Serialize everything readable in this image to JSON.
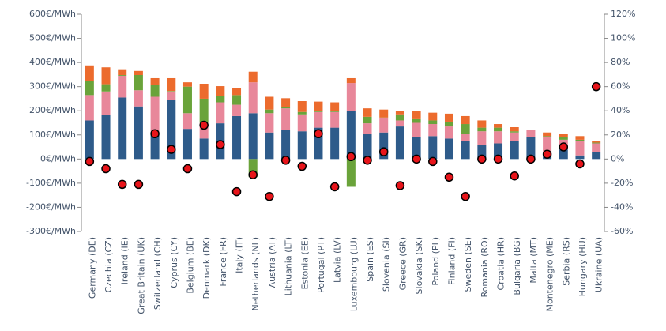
{
  "chart_data": {
    "type": "bar",
    "categories": [
      "Germany (DE)",
      "Czechia (CZ)",
      "Ireland (IE)",
      "Great Britain (UK)",
      "Switzerland (CH)",
      "Cyprus (CY)",
      "Belgium (BE)",
      "Denmark (DK)",
      "France (FR)",
      "Italy (IT)",
      "Netherlands (NL)",
      "Austria (AT)",
      "Lithuania (LT)",
      "Estonia (EE)",
      "Portugal (PT)",
      "Latvia (LV)",
      "Luxembourg (LU)",
      "Spain (ES)",
      "Slovenia (SI)",
      "Greece (GR)",
      "Slovakia (SK)",
      "Poland (PL)",
      "Finland (FI)",
      "Sweden (SE)",
      "Romania (RO)",
      "Croatia (HR)",
      "Bulgaria (BG)",
      "Malta (MT)",
      "Montenegro (ME)",
      "Serbia (RS)",
      "Hungary (HU)",
      "Ukraine (UA)"
    ],
    "series": [
      {
        "color": "#2e5b8a",
        "values": [
          160,
          182,
          255,
          218,
          100,
          245,
          125,
          85,
          148,
          178,
          190,
          110,
          122,
          115,
          130,
          130,
          198,
          105,
          110,
          135,
          90,
          95,
          85,
          75,
          60,
          65,
          75,
          90,
          25,
          40,
          15,
          30
        ]
      },
      {
        "color": "#e8879a",
        "values": [
          105,
          98,
          90,
          67,
          158,
          35,
          65,
          65,
          87,
          47,
          128,
          80,
          88,
          70,
          65,
          65,
          117,
          43,
          60,
          25,
          60,
          50,
          50,
          30,
          55,
          50,
          35,
          30,
          65,
          40,
          60,
          35
        ]
      },
      {
        "color": "#6aa33a",
        "values": [
          60,
          30,
          3,
          63,
          50,
          2,
          110,
          100,
          27,
          40,
          -75,
          15,
          5,
          10,
          5,
          3,
          -115,
          27,
          2,
          25,
          15,
          15,
          20,
          40,
          15,
          15,
          5,
          0,
          5,
          10,
          5,
          3
        ]
      },
      {
        "color": "#ec6b2d",
        "values": [
          63,
          70,
          24,
          17,
          27,
          53,
          18,
          62,
          40,
          30,
          44,
          53,
          37,
          45,
          38,
          37,
          20,
          35,
          33,
          15,
          33,
          32,
          33,
          33,
          30,
          15,
          17,
          2,
          15,
          15,
          15,
          7
        ]
      },
      {
        "type": "scatter",
        "axis": "y2",
        "color": "#e8141a",
        "values": [
          -2,
          -8,
          -21,
          -21,
          21,
          8,
          -8,
          28,
          12,
          -27,
          -13,
          -31,
          -1,
          -6,
          21,
          -23,
          2,
          -1,
          6,
          -22,
          0,
          -2,
          -15,
          -31,
          0,
          0,
          -14,
          0,
          4,
          10,
          -4,
          60
        ]
      }
    ],
    "ylim": [
      -300,
      600
    ],
    "yticks": [
      {
        "value": -300,
        "label": "-300€/MWh"
      },
      {
        "value": -200,
        "label": "-200€/MWh"
      },
      {
        "value": -100,
        "label": "-100€/MWh"
      },
      {
        "value": 0,
        "label": "0€/MWh"
      },
      {
        "value": 100,
        "label": "100€/MWh"
      },
      {
        "value": 200,
        "label": "200€/MWh"
      },
      {
        "value": 300,
        "label": "300€/MWh"
      },
      {
        "value": 400,
        "label": "400€/MWh"
      },
      {
        "value": 500,
        "label": "500€/MWh"
      },
      {
        "value": 600,
        "label": "600€/MWh"
      }
    ],
    "y2lim": [
      -60,
      120
    ],
    "y2ticks": [
      {
        "value": -60,
        "label": "-60%"
      },
      {
        "value": -40,
        "label": "-40%"
      },
      {
        "value": -20,
        "label": "-20%"
      },
      {
        "value": 0,
        "label": "0%"
      },
      {
        "value": 20,
        "label": "20%"
      },
      {
        "value": 40,
        "label": "40%"
      },
      {
        "value": 60,
        "label": "60%"
      },
      {
        "value": 80,
        "label": "80%"
      },
      {
        "value": 100,
        "label": "100%"
      },
      {
        "value": 120,
        "label": "120%"
      }
    ]
  }
}
